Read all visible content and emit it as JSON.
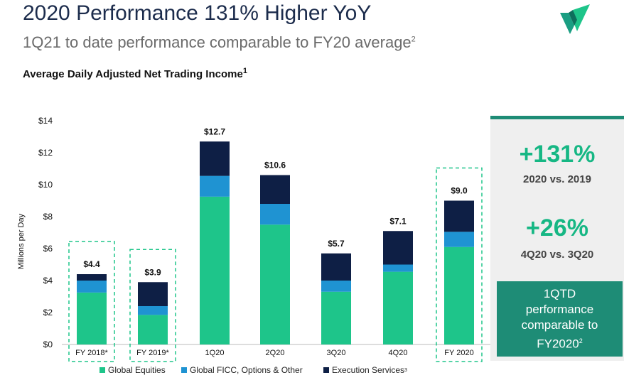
{
  "header": {
    "title": "2020 Performance 131% Higher YoY",
    "subtitle": "1Q21 to date performance comparable to FY20 average",
    "subtitle_sup": "2",
    "chart_title": "Average Daily Adjusted Net Trading Income",
    "chart_title_sup": "1"
  },
  "colors": {
    "equities": "#1ec58a",
    "ficc": "#1f93d2",
    "execution": "#0e1f45",
    "accent": "#1e8c76",
    "stat_green": "#16b784"
  },
  "chart_data": {
    "type": "bar",
    "stacked": true,
    "title": "Average Daily Adjusted Net Trading Income",
    "ylabel": "Millions per Day",
    "xlabel": "",
    "ylim": [
      0,
      14
    ],
    "yticks": [
      "$0",
      "$2",
      "$4",
      "$6",
      "$8",
      "$10",
      "$12",
      "$14"
    ],
    "ytick_values": [
      0,
      2,
      4,
      6,
      8,
      10,
      12,
      14
    ],
    "categories": [
      "FY 2018*",
      "FY 2019*",
      "1Q20",
      "2Q20",
      "3Q20",
      "4Q20",
      "FY 2020"
    ],
    "series": [
      {
        "name": "Global Equities",
        "values": [
          3.25,
          1.85,
          9.25,
          7.5,
          3.3,
          4.55,
          6.1
        ]
      },
      {
        "name": "Global FICC, Options & Other",
        "values": [
          0.75,
          0.55,
          1.3,
          1.3,
          0.7,
          0.45,
          0.95
        ]
      },
      {
        "name": "Execution Services",
        "values": [
          0.4,
          1.5,
          2.15,
          1.8,
          1.7,
          2.1,
          1.95
        ]
      }
    ],
    "totals": [
      "$4.4",
      "$3.9",
      "$12.7",
      "$10.6",
      "$5.7",
      "$7.1",
      "$9.0"
    ],
    "highlighted": [
      "FY 2018*",
      "FY 2019*",
      "FY 2020"
    ],
    "grid": false,
    "legend_position": "bottom"
  },
  "legend": {
    "items": [
      "Global Equities",
      "Global FICC, Options & Other",
      "Execution Services"
    ],
    "execution_sup": "3"
  },
  "stats": {
    "stat1_value": "+131%",
    "stat1_label": "2020 vs. 2019",
    "stat2_value": "+26%",
    "stat2_label": "4Q20 vs. 3Q20"
  },
  "callout": {
    "line1": "1QTD",
    "line2": "performance",
    "line3": "comparable to",
    "line4": "FY2020",
    "sup": "2"
  }
}
